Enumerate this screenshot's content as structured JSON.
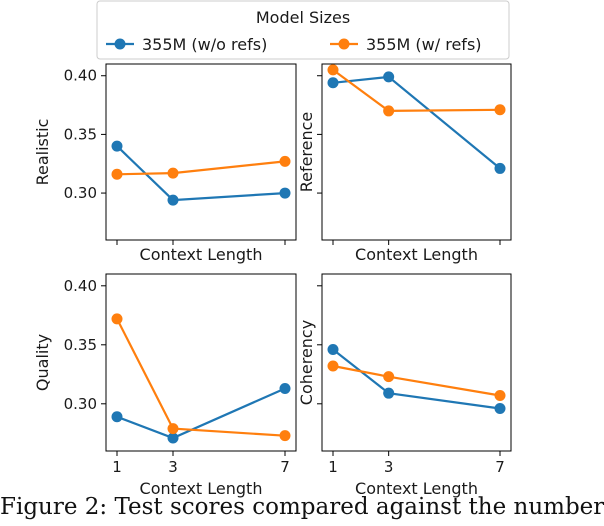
{
  "legend": {
    "title": "Model Sizes",
    "items": [
      {
        "label": "355M (w/o refs)",
        "color": "#1f77b4"
      },
      {
        "label": "355M (w/ refs)",
        "color": "#ff7f0e"
      }
    ]
  },
  "caption": "Figure 2: Test scores compared against the number",
  "chart_data": [
    {
      "type": "line",
      "panel": "top-left",
      "ylabel": "Realistic",
      "xlabel": "Context Length",
      "x": [
        1,
        3,
        7
      ],
      "xticks_labeled": false,
      "ylim": [
        0.26,
        0.41
      ],
      "yticks": [
        "0.30",
        "0.35",
        "0.40"
      ],
      "series": [
        {
          "name": "355M (w/o refs)",
          "values": [
            0.34,
            0.294,
            0.3
          ]
        },
        {
          "name": "355M (w/ refs)",
          "values": [
            0.316,
            0.317,
            0.327
          ]
        }
      ]
    },
    {
      "type": "line",
      "panel": "top-right",
      "ylabel": "Reference",
      "xlabel": "Context Length",
      "x": [
        1,
        3,
        7
      ],
      "xticks_labeled": false,
      "ylim": [
        0.26,
        0.41
      ],
      "yticks": [],
      "series": [
        {
          "name": "355M (w/o refs)",
          "values": [
            0.394,
            0.399,
            0.321
          ]
        },
        {
          "name": "355M (w/ refs)",
          "values": [
            0.405,
            0.37,
            0.371
          ]
        }
      ]
    },
    {
      "type": "line",
      "panel": "bottom-left",
      "ylabel": "Quality",
      "xlabel": "Context Length",
      "x": [
        1,
        3,
        7
      ],
      "xticks_labeled": true,
      "ylim": [
        0.26,
        0.41
      ],
      "yticks": [
        "0.30",
        "0.35",
        "0.40"
      ],
      "series": [
        {
          "name": "355M (w/o refs)",
          "values": [
            0.289,
            0.271,
            0.313
          ]
        },
        {
          "name": "355M (w/ refs)",
          "values": [
            0.372,
            0.279,
            0.273
          ]
        }
      ]
    },
    {
      "type": "line",
      "panel": "bottom-right",
      "ylabel": "Coherency",
      "xlabel": "Context Length",
      "x": [
        1,
        3,
        7
      ],
      "xticks_labeled": true,
      "ylim": [
        0.26,
        0.41
      ],
      "yticks": [],
      "series": [
        {
          "name": "355M (w/o refs)",
          "values": [
            0.346,
            0.309,
            0.296
          ]
        },
        {
          "name": "355M (w/ refs)",
          "values": [
            0.332,
            0.323,
            0.307
          ]
        }
      ]
    }
  ]
}
